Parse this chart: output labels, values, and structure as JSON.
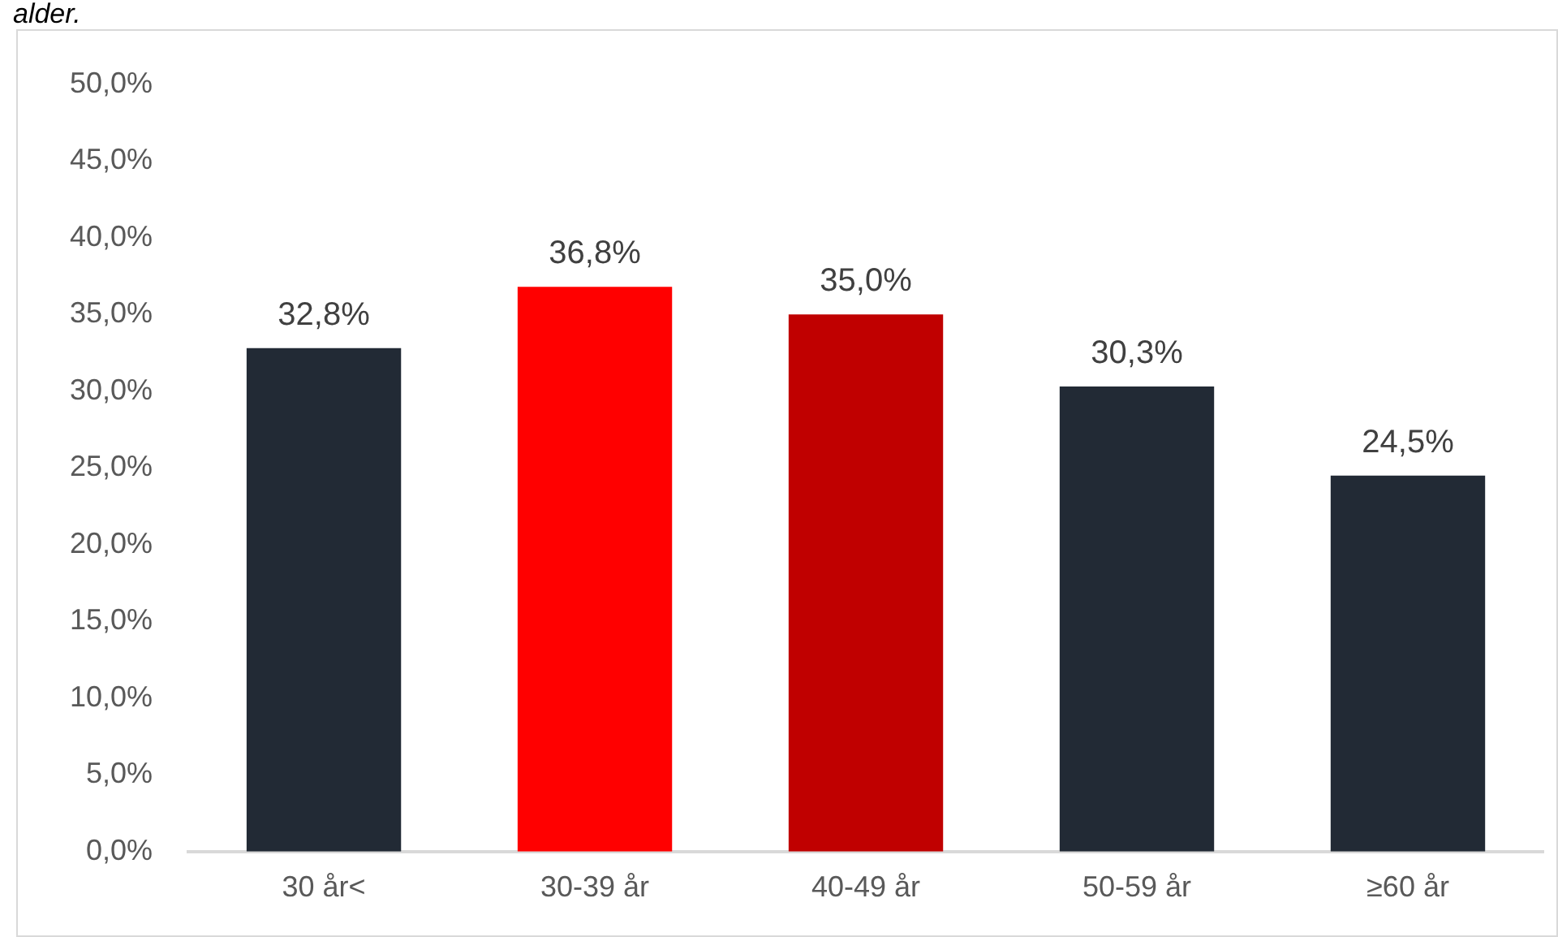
{
  "chart_data": {
    "type": "bar",
    "title": "alder.",
    "categories": [
      "30 år<",
      "30-39 år",
      "40-49 år",
      "50-59 år",
      "≥60 år"
    ],
    "values": [
      32.8,
      36.8,
      35.0,
      30.3,
      24.5
    ],
    "colors": [
      "#222a35",
      "#ff0000",
      "#c00000",
      "#222a35",
      "#222a35"
    ],
    "value_labels": [
      "32,8%",
      "36,8%",
      "35,0%",
      "30,3%",
      "24,5%"
    ],
    "ylim": [
      0,
      50
    ],
    "yticks": [
      {
        "value": 0,
        "label": "0,0%"
      },
      {
        "value": 5,
        "label": "5,0%"
      },
      {
        "value": 10,
        "label": "10,0%"
      },
      {
        "value": 15,
        "label": "15,0%"
      },
      {
        "value": 20,
        "label": "20,0%"
      },
      {
        "value": 25,
        "label": "25,0%"
      },
      {
        "value": 30,
        "label": "30,0%"
      },
      {
        "value": 35,
        "label": "35,0%"
      },
      {
        "value": 40,
        "label": "40,0%"
      },
      {
        "value": 45,
        "label": "45,0%"
      },
      {
        "value": 50,
        "label": "50,0%"
      }
    ],
    "grid": false,
    "legend": false
  }
}
